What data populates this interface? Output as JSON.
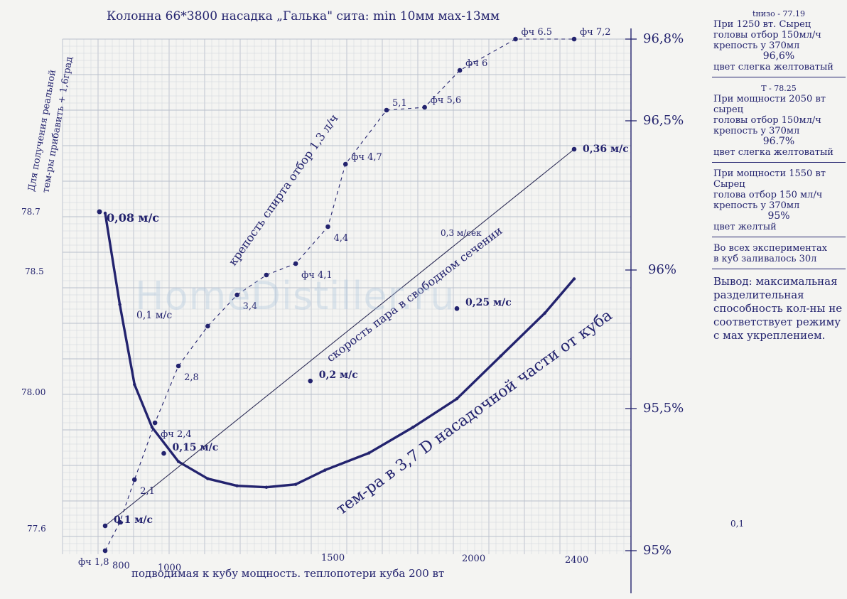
{
  "title": "Колонна 66*3800 насадка „Галька\" сита: min 10мм мах-13мм",
  "left_axis_label": [
    "Для получения реальной",
    "тем-ры прибавить + 1,6град"
  ],
  "bottom_axis_label": "подводимая к кубу мощность. теплопотери куба 200 вт",
  "watermark": "HomeDistiller.ru",
  "colors": {
    "ink": "#23236e",
    "grid_minor": "#cfd3dc",
    "grid_major": "#b9bfcc",
    "paper": "#f4f4f2"
  },
  "notes": [
    {
      "t": "tнизо - 77.19",
      "lines": [
        "При 1250 вт. Сырец",
        "головы отбор 150мл/ч",
        "крепость у 370мл"
      ],
      "center": "96,6%",
      "tail": "цвет слегка желтоватый"
    },
    {
      "t": "T - 78.25",
      "lines": [
        "При мощности 2050 вт",
        "сырец",
        "головы отбор 150мл/ч",
        "крепость у 370мл"
      ],
      "center": "96.7%",
      "tail": "цвет слегка желтоватый"
    },
    {
      "t": "",
      "lines": [
        "При мощности 1550 вт",
        "Сырец",
        "голова отбор 150 мл/ч",
        "крепость у 370мл"
      ],
      "center": "95%",
      "tail": "цвет желтый"
    },
    {
      "t": "",
      "lines": [
        "Во всех экспериментах",
        "в куб заливалось 30л"
      ],
      "center": "",
      "tail": ""
    }
  ],
  "conclusion": "Вывод: максимальная разделительная способность кол-ны не соответствует режиму с мах укреплением.",
  "chart_data": {
    "type": "line",
    "x_ticks": [
      "800",
      "1000",
      "1500",
      "2000",
      "2400"
    ],
    "y_left_ticks": [
      "78.7",
      "78.5",
      "78.00",
      "77.6"
    ],
    "y_right_ticks": [
      "96,8%",
      "96,5%",
      "96%",
      "95,5%",
      "95%"
    ],
    "series": [
      {
        "name": "тем-ра в 3,7 D насадочной части от куба",
        "axis": "left",
        "x": [
          800,
          850,
          900,
          960,
          1050,
          1150,
          1250,
          1350,
          1450,
          1550,
          1700,
          1850,
          2000,
          2150,
          2300,
          2400
        ],
        "y": [
          78.7,
          78.38,
          78.1,
          77.95,
          77.83,
          77.77,
          77.745,
          77.74,
          77.75,
          77.8,
          77.86,
          77.95,
          78.05,
          78.2,
          78.35,
          78.47
        ]
      },
      {
        "name": "крепость спирта отбор 1,3 л/ч",
        "axis": "right",
        "x": [
          800,
          850,
          900,
          970,
          1050,
          1150,
          1250,
          1350,
          1450,
          1560,
          1620,
          1760,
          1890,
          2010,
          2200,
          2400
        ],
        "y": [
          95.0,
          95.1,
          95.25,
          95.45,
          95.65,
          95.79,
          95.9,
          95.97,
          96.01,
          96.14,
          96.36,
          96.55,
          96.56,
          96.69,
          96.8,
          96.8
        ],
        "labels": [
          "фч 1,8",
          "",
          "2,1",
          "фч 2,4",
          "2,8",
          "",
          "3,4",
          "",
          "фч 4,1",
          "4,4",
          "фч 4,7",
          "5,1",
          "фч 5,6",
          "фч 6",
          "фч 6.5",
          "фч 7,2"
        ]
      },
      {
        "name": "скорость пара в свободном сечении",
        "axis": "none",
        "x": [
          800,
          1000,
          1500,
          2000,
          2400
        ],
        "y": [
          0.1,
          0.15,
          0.2,
          0.25,
          0.36
        ],
        "labels": [
          "0,1 м/с",
          "0,15 м/с",
          "0,2 м/с",
          "0,25 м/с",
          "0,36 м/с"
        ],
        "extra_labels": [
          "0,3 м/сек"
        ]
      }
    ],
    "annotations": [
      "0,08 м/с",
      "0,1 м/с",
      "0,1"
    ],
    "grid": true
  }
}
